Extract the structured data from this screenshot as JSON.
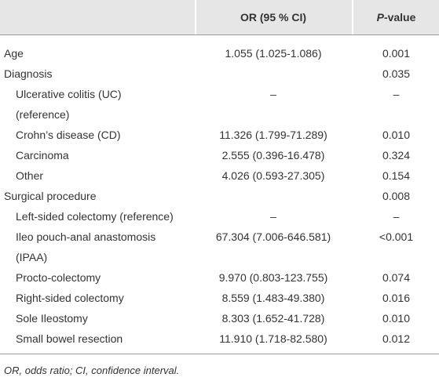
{
  "header": {
    "columns": [
      "",
      "OR (95 % CI)"
    ],
    "p_column": {
      "italic": "P",
      "rest": "-value"
    }
  },
  "table": {
    "rows": [
      {
        "label": [
          "Age"
        ],
        "or": "1.055 (1.025-1.086)",
        "p": "0.001"
      },
      {
        "label": [
          "Diagnosis"
        ],
        "or": "",
        "p": "0.035",
        "sub": [
          {
            "label": [
              "Ulcerative colitis (UC)",
              "(reference)"
            ],
            "or": "–",
            "p": "–"
          },
          {
            "label": [
              "Crohn’s disease (CD)"
            ],
            "or": "11.326 (1.799-71.289)",
            "p": "0.010"
          },
          {
            "label": [
              "Carcinoma"
            ],
            "or": "2.555 (0.396-16.478)",
            "p": "0.324"
          },
          {
            "label": [
              "Other"
            ],
            "or": "4.026 (0.593-27.305)",
            "p": "0.154"
          }
        ]
      },
      {
        "label": [
          "Surgical procedure"
        ],
        "or": "",
        "p": "0.008",
        "sub": [
          {
            "label": [
              "Left-sided colectomy (reference)"
            ],
            "or": "–",
            "p": "–"
          },
          {
            "label": [
              "Ileo pouch-anal anastomosis",
              "(IPAA)"
            ],
            "or": "67.304 (7.006-646.581)",
            "p": "<0.001"
          },
          {
            "label": [
              "Procto-colectomy"
            ],
            "or": "9.970 (0.803-123.755)",
            "p": "0.074"
          },
          {
            "label": [
              "Right-sided colectomy"
            ],
            "or": "8.559 (1.483-49.380)",
            "p": "0.016"
          },
          {
            "label": [
              "Sole Ileostomy"
            ],
            "or": "8.303 (1.652-41.728)",
            "p": "0.010"
          },
          {
            "label": [
              "Small bowel resection"
            ],
            "or": "11.910 (1.718-82.580)",
            "p": "0.012"
          }
        ]
      }
    ]
  },
  "footnote": "OR, odds ratio; CI, confidence interval."
}
